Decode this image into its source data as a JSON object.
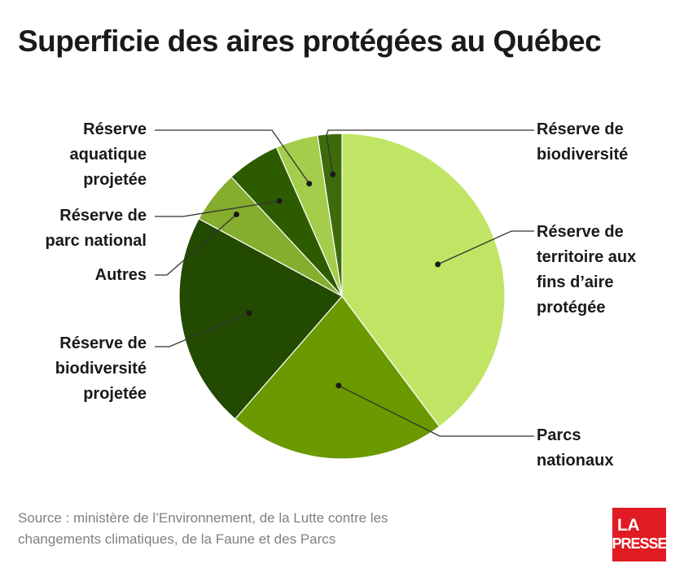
{
  "title": "Superficie des aires protégées au Québec",
  "source": "Source : ministère de l’Environnement, de la Lutte contre les changements climatiques, de la Faune et des Parcs",
  "logo": {
    "line1": "LA",
    "line2": "PRESSE"
  },
  "chart_data": {
    "type": "pie",
    "title": "Superficie des aires protégées au Québec",
    "start": "12 o'clock, clockwise",
    "slices": [
      {
        "label": "Réserve de territoire aux fins d’aire protégée",
        "value": 39.8,
        "color": "#c0e565"
      },
      {
        "label": "Parcs nationaux",
        "value": 21.6,
        "color": "#6a9900"
      },
      {
        "label": "Réserve de biodiversité projetée",
        "value": 21.5,
        "color": "#224a00"
      },
      {
        "label": "Autres",
        "value": 5.2,
        "color": "#85ad2e"
      },
      {
        "label": "Réserve de parc national",
        "value": 5.3,
        "color": "#2d5c00"
      },
      {
        "label": "Réserve aquatique projetée",
        "value": 4.2,
        "color": "#a5cd4c"
      },
      {
        "label": "Réserve de biodiversité",
        "value": 2.4,
        "color": "#3d6b0b"
      }
    ]
  }
}
